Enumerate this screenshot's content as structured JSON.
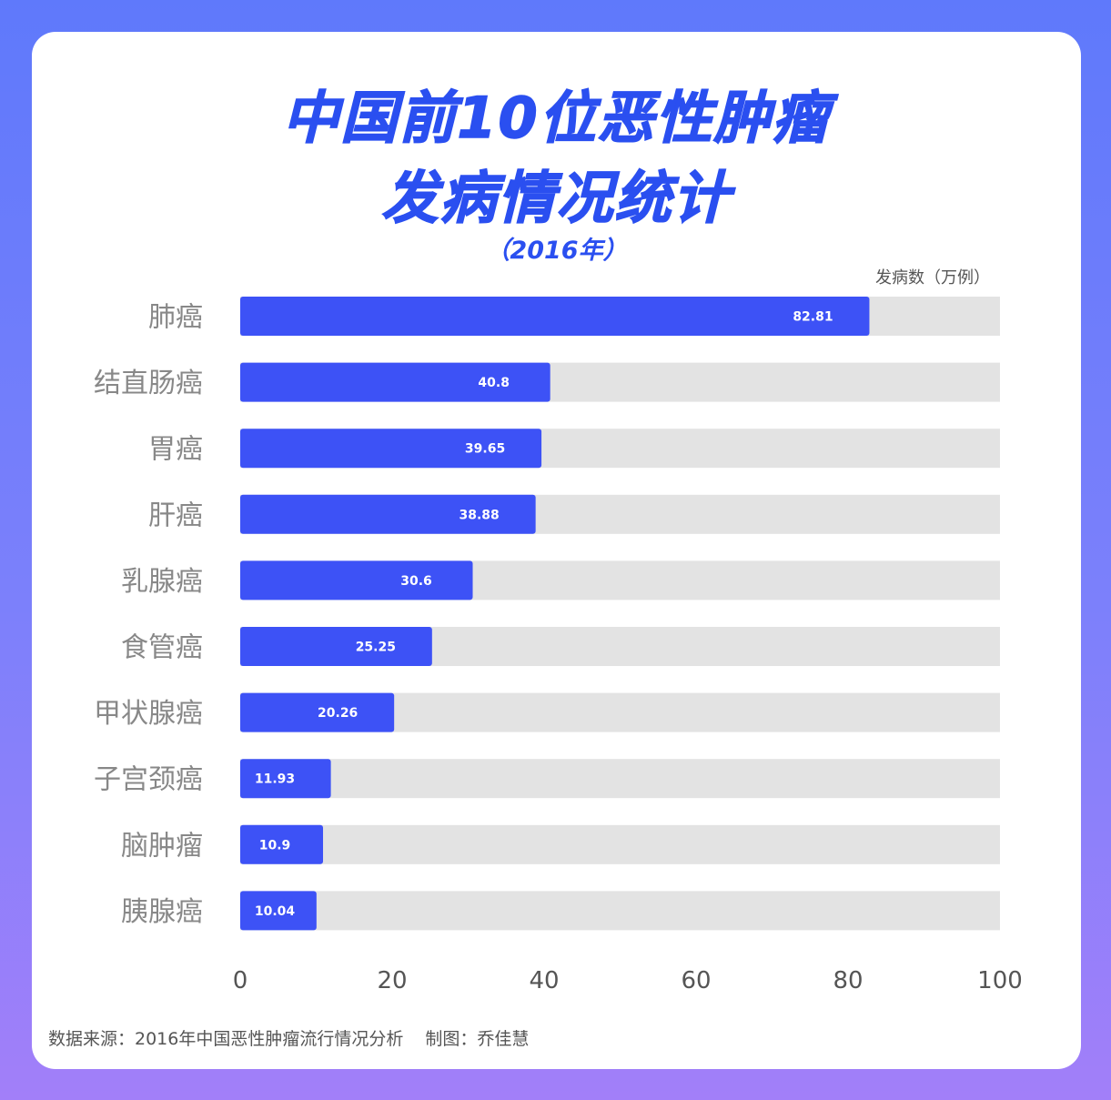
{
  "title_line1": "中国前10位恶性肿瘤",
  "title_line2": "发病情况统计",
  "subtitle": "（2016年）",
  "unit_label": "发病数（万例）",
  "source": "数据来源：2016年中国恶性肿瘤流行情况分析",
  "author": "制图：乔佳慧",
  "colors": {
    "bar": "#3d52f6",
    "track": "#e3e3e3",
    "label": "#888888",
    "tick": "#555555"
  },
  "chart_data": {
    "type": "bar",
    "orientation": "horizontal",
    "categories": [
      "肺癌",
      "结直肠癌",
      "胃癌",
      "肝癌",
      "乳腺癌",
      "食管癌",
      "甲状腺癌",
      "子宫颈癌",
      "脑肿瘤",
      "胰腺癌"
    ],
    "values": [
      82.81,
      40.8,
      39.65,
      38.88,
      30.6,
      25.25,
      20.26,
      11.93,
      10.9,
      10.04
    ],
    "value_labels": [
      "82.81",
      "40.8",
      "39.65",
      "38.88",
      "30.6",
      "25.25",
      "20.26",
      "11.93",
      "10.9",
      "10.04"
    ],
    "xlim": [
      0,
      100
    ],
    "xticks": [
      "0",
      "20",
      "40",
      "60",
      "80",
      "100"
    ],
    "grid": false,
    "legend": "none"
  }
}
